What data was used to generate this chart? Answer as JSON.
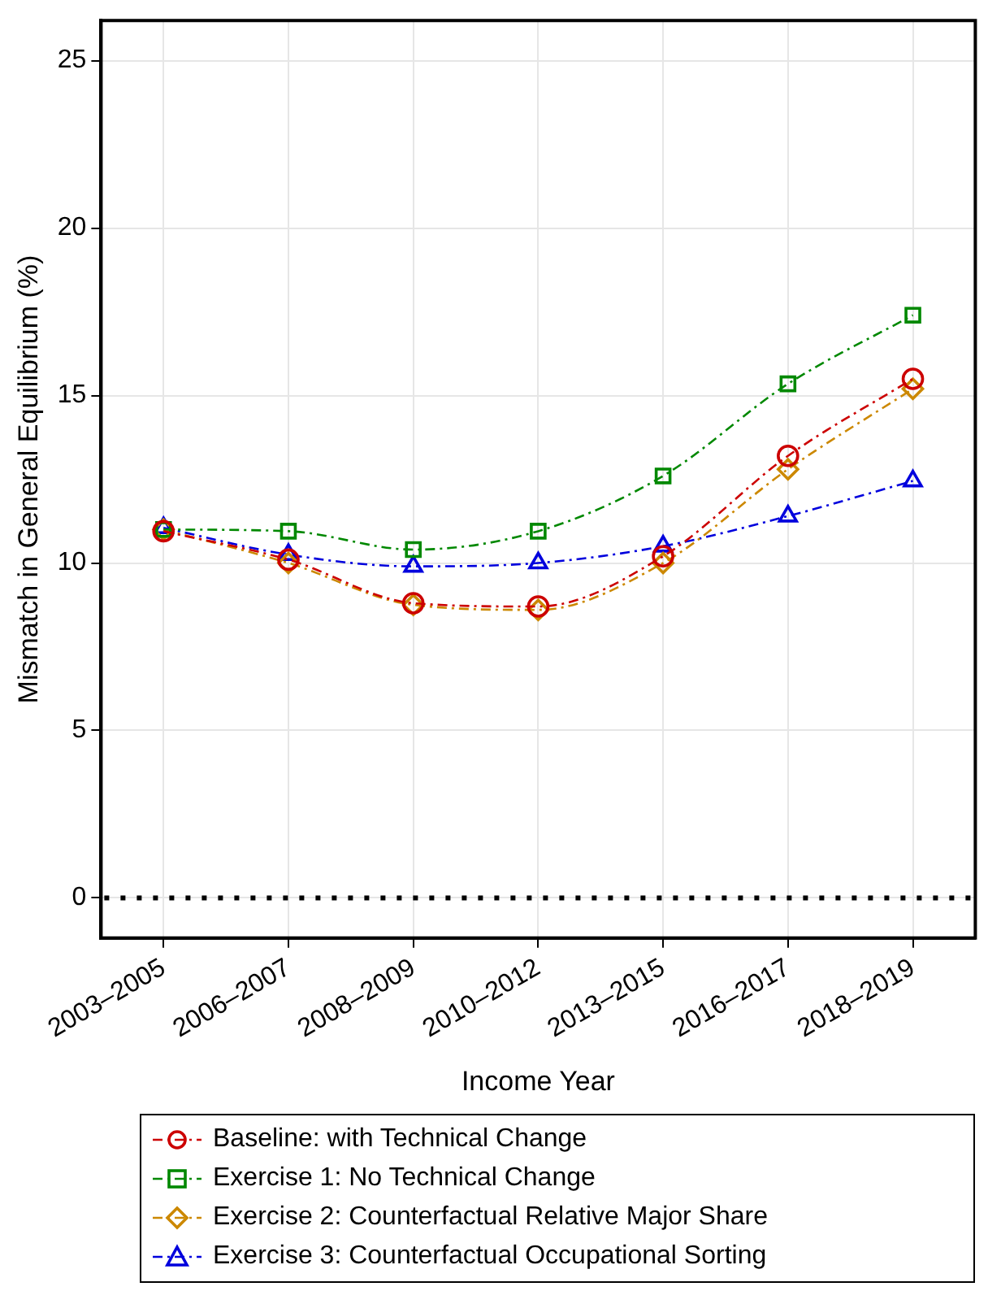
{
  "chart_data": {
    "type": "line",
    "ylabel": "Mismatch in General Equilibrium (%)",
    "xlabel": "Income Year",
    "categories": [
      "2003–2005",
      "2006–2007",
      "2008–2009",
      "2010–2012",
      "2013–2015",
      "2016–2017",
      "2018–2019"
    ],
    "series": [
      {
        "name": "Baseline: with Technical Change",
        "color": "#cc0000",
        "marker": "circle",
        "values": [
          10.95,
          10.1,
          8.8,
          8.7,
          10.2,
          13.2,
          15.5
        ]
      },
      {
        "name": "Exercise 1: No Technical Change",
        "color": "#008800",
        "marker": "square",
        "values": [
          11.0,
          10.95,
          10.4,
          10.95,
          12.6,
          15.35,
          17.4
        ]
      },
      {
        "name": "Exercise 2: Counterfactual Relative Major Share",
        "color": "#cc8800",
        "marker": "diamond",
        "values": [
          11.0,
          10.0,
          8.75,
          8.6,
          10.0,
          12.8,
          15.2
        ]
      },
      {
        "name": "Exercise 3: Counterfactual Occupational Sorting",
        "color": "#0000dd",
        "marker": "triangle",
        "values": [
          11.05,
          10.25,
          9.9,
          10.0,
          10.5,
          11.4,
          12.45
        ]
      }
    ],
    "ylim": [
      -1.2,
      26.2
    ],
    "yticks": [
      0,
      5,
      10,
      15,
      20,
      25
    ],
    "grid": true,
    "legend": "bottom",
    "line_style": "dashed",
    "ref_lines": [
      {
        "axis": "y",
        "value": 0,
        "color": "#000000",
        "line_style": "dotted"
      }
    ]
  }
}
